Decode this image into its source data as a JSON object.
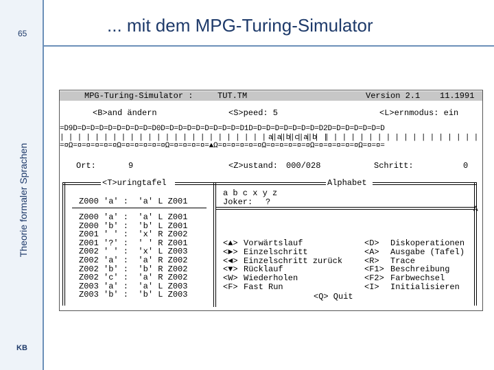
{
  "slide": {
    "page_number": "65",
    "side_title": "Theorie formaler Sprachen",
    "title": "... mit dem MPG-Turing-Simulator",
    "footer_mark": "KB"
  },
  "terminal": {
    "app_name": "MPG-Turing-Simulator :",
    "file_name": "TUT.TM",
    "version": "Version 2.1",
    "date": "11.1991",
    "menu_change": "<B>and ändern",
    "menu_speed": "<S>peed: 5",
    "menu_learn": "<L>ernmodus: ein",
    "tape_top": "=D9D=D=D=D=D=D=D=D=D=D0D=D=D=D=D=D=D=D=D=D1D=D=D=D=D=D=D=D=D2D=D=D=D=D=D=D",
    "tape_cells_left": "| | | | | | | | | | | | | | | | | | | | | | | | | | | | | | |",
    "tape_word": "a|a|b|c|a|b",
    "tape_cells_right": "| | | | | | | | | | | | | | | | | | |",
    "tape_bottom": "=¤Ω=¤=¤=¤=¤=¤Ω=¤=¤=¤=¤=¤Ω=¤=¤=¤=¤=▲Ω=¤=¤=¤=¤=¤Ω=¤=¤=¤=¤=¤Ω=¤=¤=¤=¤=¤Ω=¤=¤=",
    "position_label": "Ort:",
    "position_value": "9",
    "state_label": "<Z>ustand:",
    "state_value": "000/028",
    "step_label": "Schritt:",
    "step_value": "0",
    "table_header": "<T>uringtafel",
    "alphabet_header": "Alphabet",
    "alphabet_symbols": "a b c x y z",
    "joker_label": "Joker:",
    "joker_value": "?",
    "cursor_mark": "A",
    "start_rule": "Z000 'a' :  'a' L Z001",
    "rules": [
      "Z000 'a' :  'a' L Z001",
      "Z000 'b' :  'b' L Z001",
      "Z001 ' ' :  'x' R Z002",
      "Z001 '?' :  ' ' R Z001",
      "Z002 ' ' :  'x' L Z003",
      "Z002 'a' :  'a' R Z002",
      "Z002 'b' :  'b' R Z002",
      "Z002 'c' :  'a' R Z002",
      "Z003 'a' :  'a' L Z003",
      "Z003 'b' :  'b' L Z003"
    ],
    "commands_left": [
      {
        "key": "<▲>",
        "label": "Vorwärtslauf"
      },
      {
        "key": "<►>",
        "label": "Einzelschritt"
      },
      {
        "key": "<◄>",
        "label": "Einzelschritt zurück"
      },
      {
        "key": "<▼>",
        "label": "Rücklauf"
      },
      {
        "key": "<W>",
        "label": "Wiederholen"
      },
      {
        "key": "<F>",
        "label": "Fast Run"
      }
    ],
    "commands_right": [
      {
        "key": "<D>",
        "label": "Diskoperationen"
      },
      {
        "key": "<A>",
        "label": "Ausgabe (Tafel)"
      },
      {
        "key": "<R>",
        "label": "Trace"
      },
      {
        "key": "<F1>",
        "label": "Beschreibung"
      },
      {
        "key": "<F2>",
        "label": "Farbwechsel"
      },
      {
        "key": "<I>",
        "label": "Initialisieren"
      }
    ],
    "quit": "<Q> Quit"
  },
  "colors": {
    "slide_text": "#1e3a6a",
    "accent_line": "#6b8fb8",
    "side_strip": "#eef3f9",
    "titlebar": "#c7c7c7"
  }
}
